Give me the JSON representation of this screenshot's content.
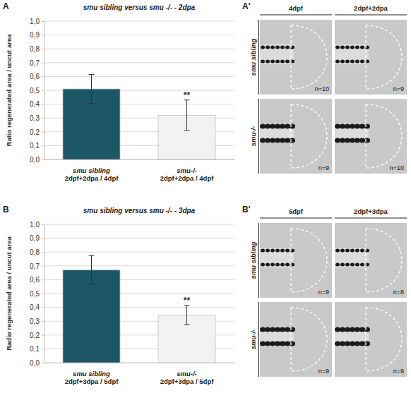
{
  "chart_data": [
    {
      "type": "bar",
      "panel_label": "A",
      "title": "smu sibling versus smu -/- - 2dpa",
      "y_label": "Ratio regenerated area / uncut area",
      "categories": [
        "smu sibling\n2dpf+2dpa / 4dpf",
        "smu-/-\n2dpf+2dpa / 4dpf"
      ],
      "values": [
        0.51,
        0.32
      ],
      "errors": [
        0.105,
        0.11
      ],
      "colors": [
        "#1d5666",
        "#f2f2f2"
      ],
      "annotations": [
        {
          "text": "**",
          "category": 1
        }
      ],
      "ylim": [
        0,
        1
      ],
      "yticks": [
        {
          "value": 0,
          "label": "0,0"
        },
        {
          "value": 0.1,
          "label": "0,1"
        },
        {
          "value": 0.2,
          "label": "0,2"
        },
        {
          "value": 0.3,
          "label": "0,3"
        },
        {
          "value": 0.4,
          "label": "0,4"
        },
        {
          "value": 0.5,
          "label": "0,5"
        },
        {
          "value": 0.6,
          "label": "0,6"
        },
        {
          "value": 0.7,
          "label": "0,7"
        },
        {
          "value": 0.8,
          "label": "0,8"
        },
        {
          "value": 0.9,
          "label": "0,9"
        },
        {
          "value": 1,
          "label": "1,0"
        }
      ],
      "grid": true
    },
    {
      "type": "bar",
      "panel_label": "B",
      "title": "smu sibling versus smu -/- - 3dpa",
      "y_label": "Radio regenerated area / uncut area",
      "categories": [
        "smu sibling\n2dpf+3dpa / 5dpf",
        "smu-/-\n2dpf+3dpa / 5dpf"
      ],
      "values": [
        0.67,
        0.345
      ],
      "errors": [
        0.105,
        0.07
      ],
      "colors": [
        "#1d5666",
        "#f2f2f2"
      ],
      "annotations": [
        {
          "text": "**",
          "category": 1
        }
      ],
      "ylim": [
        0,
        1
      ],
      "yticks": [
        {
          "value": 0,
          "label": "0,0"
        },
        {
          "value": 0.1,
          "label": "0,1"
        },
        {
          "value": 0.2,
          "label": "0,2"
        },
        {
          "value": 0.3,
          "label": "0,3"
        },
        {
          "value": 0.4,
          "label": "0,4"
        },
        {
          "value": 0.5,
          "label": "0,5"
        },
        {
          "value": 0.6,
          "label": "0,6"
        },
        {
          "value": 0.7,
          "label": "0,7"
        },
        {
          "value": 0.8,
          "label": "0,8"
        },
        {
          "value": 0.9,
          "label": "0,9"
        },
        {
          "value": 1,
          "label": "1,0"
        }
      ],
      "grid": true
    }
  ],
  "image_panels": [
    {
      "label": "A'",
      "columns": [
        "4dpf",
        "2dpf+2dpa"
      ],
      "rows": [
        "smu sibling",
        "smu-/-"
      ],
      "n": [
        [
          "n=10",
          "n=9"
        ],
        [
          "n=9",
          "n=10"
        ]
      ]
    },
    {
      "label": "B'",
      "columns": [
        "5dpf",
        "2dpf+3dpa"
      ],
      "rows": [
        "smu sibling",
        "smu-/-"
      ],
      "n": [
        [
          "n=9",
          "n=8"
        ],
        [
          "n=9",
          "n=9"
        ]
      ]
    }
  ]
}
